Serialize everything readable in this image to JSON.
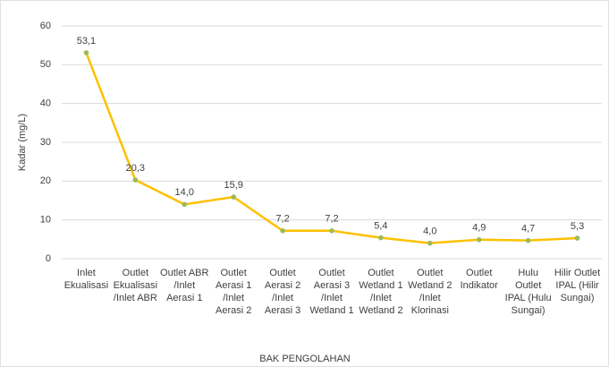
{
  "chart_data": {
    "type": "line",
    "x_label": "BAK PENGOLAHAN",
    "y_label": "Kadar (mg/L)",
    "categories": [
      "Inlet Ekualisasi",
      "Outlet Ekualisasi /Inlet ABR",
      "Outlet ABR /Inlet Aerasi 1",
      "Outlet Aerasi 1 /Inlet Aerasi 2",
      "Outlet Aerasi 2 /Inlet Aerasi 3",
      "Outlet Aerasi 3 /Inlet Wetland 1",
      "Outlet Wetland 1 /Inlet Wetland 2",
      "Outlet Wetland 2 /Inlet Klorinasi",
      "Outlet Indikator",
      "Hulu Outlet IPAL (Hulu Sungai)",
      "Hilir Outlet IPAL (Hilir Sungai)"
    ],
    "values": [
      53.1,
      20.3,
      14.0,
      15.9,
      7.2,
      7.2,
      5.4,
      4.0,
      4.9,
      4.7,
      5.3
    ],
    "value_labels": [
      "53,1",
      "20,3",
      "14,0",
      "15,9",
      "7,2",
      "7,2",
      "5,4",
      "4,0",
      "4,9",
      "4,7",
      "5,3"
    ],
    "color": "#ffc000",
    "marker_color": "#9bbb59",
    "ylim": [
      0,
      60
    ],
    "yticks": [
      0,
      10,
      20,
      30,
      40,
      50,
      60
    ],
    "grid": true
  }
}
